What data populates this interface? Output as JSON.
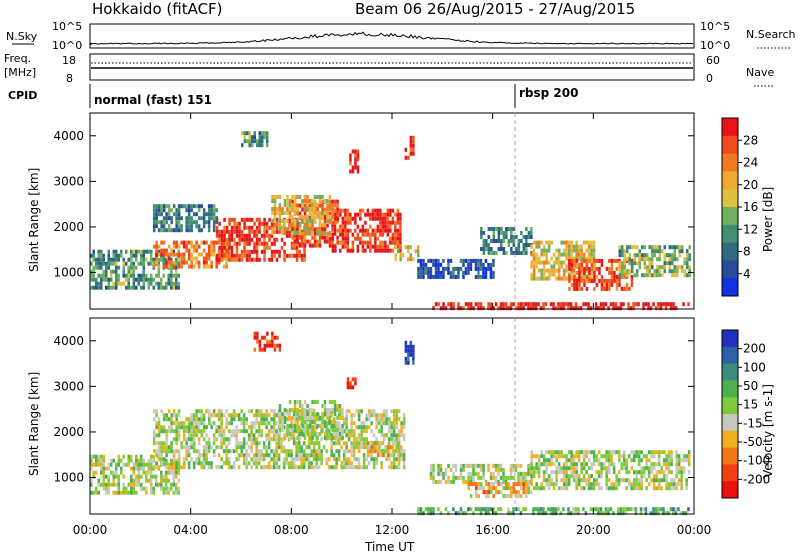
{
  "header": {
    "title": "Hokkaido (fitACF)",
    "beam_label": "Beam 06 26/Aug/2015 - 27/Aug/2015"
  },
  "panels": {
    "nsky": {
      "label": "N.Sky",
      "tick_top": "10^5",
      "tick_bottom": "10^0",
      "right_tick_top": "10^5",
      "right_tick_bottom": "10^0",
      "right_label": "N.Search"
    },
    "freq": {
      "label_line1": "Freq.",
      "label_line2": "[MHz]",
      "tick_top": "18",
      "tick_bottom": "8",
      "right_tick_top": "60",
      "right_tick_bottom": "0",
      "right_label": "Nave"
    },
    "cpid": {
      "label": "CPID",
      "mode1": "normal (fast) 151",
      "mode2": "rbsp 200"
    }
  },
  "colorbars": {
    "power": {
      "label": "Power [dB]",
      "ticks": [
        "28",
        "24",
        "20",
        "16",
        "12",
        "8",
        "4"
      ],
      "colors": [
        "#e8141a",
        "#f04a1c",
        "#f07a22",
        "#f0a830",
        "#e0c040",
        "#70b060",
        "#409070",
        "#306a80",
        "#284a9c",
        "#1030e0"
      ]
    },
    "velocity": {
      "label": "Velocity [m s-1]",
      "ticks": [
        "200",
        "100",
        "50",
        "15",
        "-15",
        "-50",
        "-100",
        "-200"
      ],
      "colors": [
        "#2030c0",
        "#2e60a8",
        "#3c8c7c",
        "#4cb050",
        "#7ccc3a",
        "#c8c8c0",
        "#f0b020",
        "#f07818",
        "#f04010",
        "#e81010"
      ]
    }
  },
  "chart_data": [
    {
      "type": "heatmap",
      "name": "power",
      "xlabel": "Time UT",
      "ylabel": "Slant Range [km]",
      "x_ticks": [
        "00:00",
        "04:00",
        "08:00",
        "12:00",
        "16:00",
        "20:00",
        "00:00"
      ],
      "y_ticks": [
        1000,
        2000,
        3000,
        4000
      ],
      "xlim": [
        0,
        24
      ],
      "ylim": [
        200,
        4500
      ],
      "regions": [
        {
          "t0": 0.0,
          "t1": 3.5,
          "r0": 700,
          "r1": 1500,
          "level": 0.35
        },
        {
          "t0": 2.5,
          "t1": 5.5,
          "r0": 1100,
          "r1": 1700,
          "level": 0.75
        },
        {
          "t0": 5.0,
          "t1": 8.5,
          "r0": 1300,
          "r1": 2200,
          "level": 0.9
        },
        {
          "t0": 8.0,
          "t1": 9.8,
          "r0": 1600,
          "r1": 2600,
          "level": 0.85
        },
        {
          "t0": 9.5,
          "t1": 12.3,
          "r0": 1500,
          "r1": 2400,
          "level": 0.9
        },
        {
          "t0": 12.0,
          "t1": 13.0,
          "r0": 1300,
          "r1": 1600,
          "level": 0.6
        },
        {
          "t0": 2.5,
          "t1": 5.0,
          "r0": 1900,
          "r1": 2500,
          "level": 0.3
        },
        {
          "t0": 7.2,
          "t1": 9.5,
          "r0": 1900,
          "r1": 2700,
          "level": 0.6
        },
        {
          "t0": 6.0,
          "t1": 7.0,
          "r0": 3800,
          "r1": 4100,
          "level": 0.35
        },
        {
          "t0": 10.3,
          "t1": 10.6,
          "r0": 3200,
          "r1": 3700,
          "level": 0.95
        },
        {
          "t0": 12.5,
          "t1": 12.8,
          "r0": 3500,
          "r1": 4000,
          "level": 0.9
        },
        {
          "t0": 13.0,
          "t1": 16.0,
          "r0": 900,
          "r1": 1300,
          "level": 0.15
        },
        {
          "t0": 15.5,
          "t1": 17.5,
          "r0": 1400,
          "r1": 2000,
          "level": 0.3
        },
        {
          "t0": 17.5,
          "t1": 20.0,
          "r0": 900,
          "r1": 1700,
          "level": 0.6
        },
        {
          "t0": 19.0,
          "t1": 21.5,
          "r0": 600,
          "r1": 1300,
          "level": 0.85
        },
        {
          "t0": 21.0,
          "t1": 23.8,
          "r0": 900,
          "r1": 1600,
          "level": 0.45
        },
        {
          "t0": 13.5,
          "t1": 23.8,
          "r0": 200,
          "r1": 350,
          "level": 0.95
        }
      ]
    },
    {
      "type": "heatmap",
      "name": "velocity",
      "xlabel": "Time UT",
      "ylabel": "Slant Range [km]",
      "x_ticks": [
        "00:00",
        "04:00",
        "08:00",
        "12:00",
        "16:00",
        "20:00",
        "00:00"
      ],
      "y_ticks": [
        1000,
        2000,
        3000,
        4000
      ],
      "xlim": [
        0,
        24
      ],
      "ylim": [
        200,
        4500
      ],
      "regions": [
        {
          "t0": 0.0,
          "t1": 3.5,
          "r0": 700,
          "r1": 1500,
          "level": 0.5
        },
        {
          "t0": 2.5,
          "t1": 12.5,
          "r0": 1200,
          "r1": 2500,
          "level": 0.5
        },
        {
          "t0": 7.5,
          "t1": 10.0,
          "r0": 1900,
          "r1": 2700,
          "level": 0.5
        },
        {
          "t0": 11.0,
          "t1": 12.3,
          "r0": 1500,
          "r1": 1800,
          "level": 0.4
        },
        {
          "t0": 10.2,
          "t1": 10.5,
          "r0": 2900,
          "r1": 3200,
          "level": 0.02
        },
        {
          "t0": 12.5,
          "t1": 12.8,
          "r0": 3500,
          "r1": 4000,
          "level": 0.95
        },
        {
          "t0": 6.5,
          "t1": 7.5,
          "r0": 3800,
          "r1": 4200,
          "level": 0.1
        },
        {
          "t0": 13.5,
          "t1": 17.5,
          "r0": 900,
          "r1": 1300,
          "level": 0.5
        },
        {
          "t0": 17.5,
          "t1": 23.8,
          "r0": 800,
          "r1": 1600,
          "level": 0.5
        },
        {
          "t0": 15.0,
          "t1": 17.5,
          "r0": 600,
          "r1": 900,
          "level": 0.35
        },
        {
          "t0": 13.0,
          "t1": 23.8,
          "r0": 200,
          "r1": 350,
          "level": 0.65
        }
      ]
    }
  ]
}
